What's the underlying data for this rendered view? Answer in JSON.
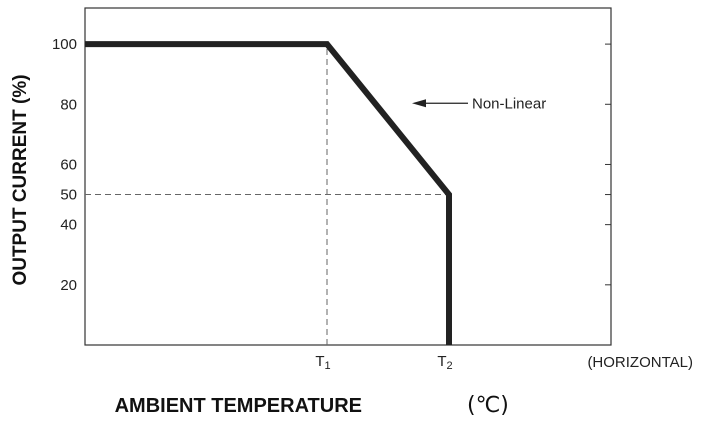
{
  "chart_data": {
    "type": "line",
    "title": "",
    "xlabel": "AMBIENT TEMPERATURE",
    "xlabel_unit": "(℃)",
    "ylabel": "OUTPUT CURRENT (%)",
    "x_axis_note": "(HORIZONTAL)",
    "x_ticks": [
      {
        "label": "T",
        "sub": "1"
      },
      {
        "label": "T",
        "sub": "2"
      }
    ],
    "y_ticks": [
      100,
      80,
      60,
      50,
      40,
      20
    ],
    "ylim": [
      0,
      112
    ],
    "xlim": [
      0,
      3
    ],
    "grid": false,
    "series": [
      {
        "name": "",
        "points": [
          {
            "x": 0,
            "y": 100
          },
          {
            "x": 1,
            "y": 100
          },
          {
            "x": 1.5,
            "y": 50
          },
          {
            "x": 1.5,
            "y": 0
          }
        ]
      }
    ],
    "reference_lines": [
      {
        "orientation": "vertical",
        "x": 1,
        "from_y": 0,
        "to_y": 100
      },
      {
        "orientation": "horizontal",
        "y": 50,
        "from_x": 0,
        "to_x": 1.5
      }
    ],
    "annotations": [
      {
        "text": "Non-Linear",
        "x": 1.6,
        "y": 80,
        "arrow": true
      }
    ],
    "colors": {
      "line": "#222222",
      "frame": "#333333",
      "dash": "#666666"
    }
  }
}
